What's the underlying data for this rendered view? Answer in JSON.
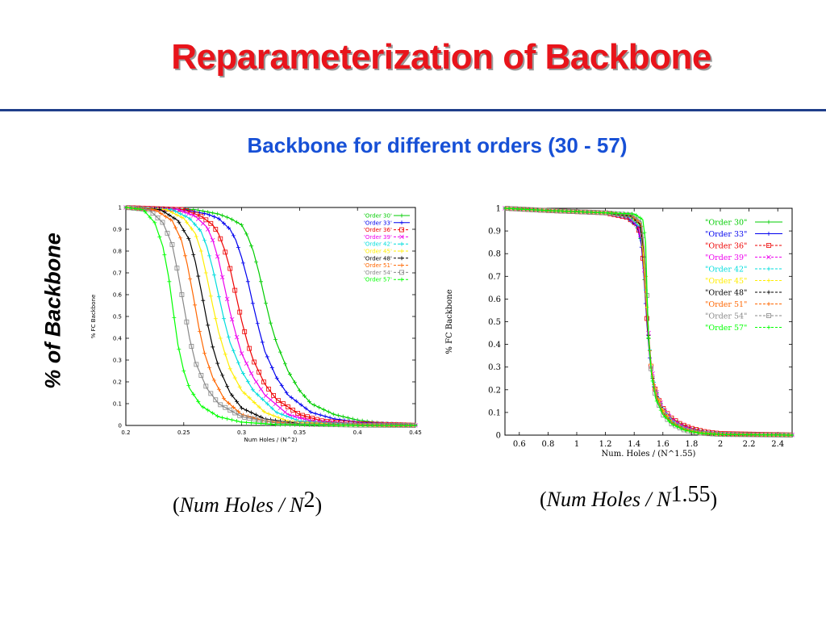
{
  "slide": {
    "title": "Reparameterization of Backbone",
    "subtitle": "Backbone for different orders (30 - 57)",
    "y_caption": "% of Backbone",
    "left_formula": {
      "open": "(",
      "text": "Num Holes / N",
      "exponent": "2",
      "close": ")"
    },
    "right_formula": {
      "open": "(",
      "text": "Num Holes / N",
      "exponent": "1.55",
      "close": ")"
    }
  },
  "colors": {
    "title": "#e8141b",
    "subtitle": "#1750d6",
    "rule": "#1f3e8a"
  },
  "chart_data": [
    {
      "type": "line",
      "xlabel": "Num Holes / (N^2)",
      "ylabel": "% FC Backbone",
      "xlim": [
        0.2,
        0.45
      ],
      "ylim": [
        0,
        1
      ],
      "xticks": [
        "0.2",
        "0.25",
        "0.3",
        "0.35",
        "0.4",
        "0.45"
      ],
      "xtick_values": [
        0.2,
        0.25,
        0.3,
        0.35,
        0.4,
        0.45
      ],
      "yticks": [
        "0",
        "0.1",
        "0.2",
        "0.3",
        "0.4",
        "0.5",
        "0.6",
        "0.7",
        "0.8",
        "0.9",
        "1"
      ],
      "ytick_values": [
        0,
        0.1,
        0.2,
        0.3,
        0.4,
        0.5,
        0.6,
        0.7,
        0.8,
        0.9,
        1
      ],
      "legend_position": "top-right",
      "grid": false,
      "series": [
        {
          "name": "Order 30",
          "legend": "'Order 30'",
          "color": "#00cc00",
          "x": [
            0.2,
            0.26,
            0.28,
            0.29,
            0.3,
            0.305,
            0.31,
            0.315,
            0.32,
            0.325,
            0.33,
            0.34,
            0.35,
            0.36,
            0.38,
            0.4,
            0.42,
            0.45
          ],
          "y": [
            1,
            0.99,
            0.97,
            0.95,
            0.92,
            0.87,
            0.8,
            0.7,
            0.58,
            0.47,
            0.38,
            0.25,
            0.16,
            0.1,
            0.05,
            0.025,
            0.01,
            0.003
          ]
        },
        {
          "name": "Order 33",
          "legend": "'Order 33'",
          "color": "#0000ee",
          "x": [
            0.2,
            0.25,
            0.27,
            0.28,
            0.29,
            0.295,
            0.3,
            0.305,
            0.31,
            0.315,
            0.32,
            0.33,
            0.34,
            0.36,
            0.38,
            0.4,
            0.45
          ],
          "y": [
            1,
            0.99,
            0.97,
            0.95,
            0.9,
            0.85,
            0.77,
            0.67,
            0.55,
            0.44,
            0.34,
            0.22,
            0.14,
            0.06,
            0.03,
            0.015,
            0.002
          ]
        },
        {
          "name": "Order 36",
          "legend": "'Order 36'",
          "color": "#ee0000",
          "x": [
            0.2,
            0.25,
            0.265,
            0.275,
            0.28,
            0.285,
            0.29,
            0.295,
            0.3,
            0.305,
            0.31,
            0.32,
            0.33,
            0.35,
            0.37,
            0.4,
            0.45
          ],
          "y": [
            1,
            0.99,
            0.96,
            0.92,
            0.88,
            0.81,
            0.72,
            0.6,
            0.48,
            0.38,
            0.3,
            0.19,
            0.12,
            0.05,
            0.02,
            0.008,
            0.001
          ]
        },
        {
          "name": "Order 39",
          "legend": "'Order 39'",
          "color": "#ee00ee",
          "x": [
            0.2,
            0.245,
            0.26,
            0.27,
            0.275,
            0.28,
            0.285,
            0.29,
            0.295,
            0.3,
            0.31,
            0.32,
            0.34,
            0.36,
            0.4,
            0.45
          ],
          "y": [
            1,
            0.99,
            0.96,
            0.91,
            0.85,
            0.76,
            0.64,
            0.52,
            0.42,
            0.33,
            0.22,
            0.14,
            0.05,
            0.02,
            0.005,
            0.001
          ]
        },
        {
          "name": "Order 42",
          "legend": "'Order 42'",
          "color": "#00dddd",
          "x": [
            0.2,
            0.24,
            0.255,
            0.265,
            0.27,
            0.275,
            0.28,
            0.285,
            0.29,
            0.3,
            0.31,
            0.33,
            0.35,
            0.4,
            0.45
          ],
          "y": [
            1,
            0.99,
            0.95,
            0.89,
            0.82,
            0.72,
            0.6,
            0.48,
            0.38,
            0.25,
            0.16,
            0.06,
            0.02,
            0.004,
            0
          ]
        },
        {
          "name": "Order 45",
          "legend": "'Order 45'",
          "color": "#ffee00",
          "x": [
            0.2,
            0.235,
            0.25,
            0.26,
            0.265,
            0.27,
            0.275,
            0.28,
            0.285,
            0.29,
            0.3,
            0.32,
            0.34,
            0.38,
            0.45
          ],
          "y": [
            1,
            0.99,
            0.95,
            0.88,
            0.8,
            0.68,
            0.55,
            0.43,
            0.34,
            0.26,
            0.16,
            0.06,
            0.02,
            0.004,
            0
          ]
        },
        {
          "name": "Order 48",
          "legend": "'Order 48'",
          "color": "#000000",
          "x": [
            0.2,
            0.23,
            0.245,
            0.255,
            0.26,
            0.265,
            0.27,
            0.275,
            0.28,
            0.29,
            0.3,
            0.32,
            0.35,
            0.4,
            0.45
          ],
          "y": [
            1,
            0.99,
            0.94,
            0.85,
            0.75,
            0.62,
            0.48,
            0.36,
            0.27,
            0.15,
            0.08,
            0.03,
            0.008,
            0.001,
            0
          ]
        },
        {
          "name": "Order 51",
          "legend": "'Order 51'",
          "color": "#ff6600",
          "x": [
            0.2,
            0.225,
            0.24,
            0.248,
            0.253,
            0.258,
            0.263,
            0.268,
            0.275,
            0.285,
            0.3,
            0.32,
            0.35,
            0.45
          ],
          "y": [
            1,
            0.99,
            0.94,
            0.85,
            0.74,
            0.6,
            0.45,
            0.33,
            0.22,
            0.12,
            0.05,
            0.02,
            0.005,
            0
          ]
        },
        {
          "name": "Order 54",
          "legend": "'Order 54'",
          "color": "#888888",
          "x": [
            0.2,
            0.22,
            0.232,
            0.24,
            0.245,
            0.25,
            0.255,
            0.26,
            0.27,
            0.28,
            0.3,
            0.33,
            0.4,
            0.45
          ],
          "y": [
            1,
            0.99,
            0.93,
            0.83,
            0.7,
            0.55,
            0.4,
            0.29,
            0.17,
            0.1,
            0.04,
            0.01,
            0.001,
            0
          ]
        },
        {
          "name": "Order 57",
          "legend": "'Order 57'",
          "color": "#00ff00",
          "x": [
            0.2,
            0.215,
            0.225,
            0.232,
            0.237,
            0.241,
            0.245,
            0.25,
            0.255,
            0.265,
            0.28,
            0.3,
            0.33,
            0.4,
            0.45
          ],
          "y": [
            1,
            0.99,
            0.93,
            0.82,
            0.68,
            0.52,
            0.37,
            0.25,
            0.17,
            0.09,
            0.04,
            0.015,
            0.004,
            0,
            0
          ]
        }
      ]
    },
    {
      "type": "line",
      "xlabel": "Num. Holes / (N^1.55)",
      "ylabel": "% FC Backbone",
      "xlim": [
        0.5,
        2.5
      ],
      "ylim": [
        0,
        1
      ],
      "xticks": [
        "0.6",
        "0.8",
        "1",
        "1.2",
        "1.4",
        "1.6",
        "1.8",
        "2",
        "2.2",
        "2.4"
      ],
      "xtick_values": [
        0.6,
        0.8,
        1,
        1.2,
        1.4,
        1.6,
        1.8,
        2,
        2.2,
        2.4
      ],
      "yticks": [
        "0",
        "0.1",
        "0.2",
        "0.3",
        "0.4",
        "0.5",
        "0.6",
        "0.7",
        "0.8",
        "0.9",
        "1"
      ],
      "ytick_values": [
        0,
        0.1,
        0.2,
        0.3,
        0.4,
        0.5,
        0.6,
        0.7,
        0.8,
        0.9,
        1
      ],
      "legend_position": "top-right",
      "grid": false,
      "series": [
        {
          "name": "Order 30",
          "legend": "\"Order 30\"",
          "color": "#00cc00",
          "x": [
            0.5,
            0.8,
            1.0,
            1.2,
            1.35,
            1.42,
            1.45,
            1.47,
            1.49,
            1.51,
            1.53,
            1.56,
            1.6,
            1.65,
            1.72,
            1.8,
            1.9,
            2.0,
            2.2,
            2.5
          ],
          "y": [
            1,
            0.99,
            0.985,
            0.98,
            0.96,
            0.92,
            0.85,
            0.7,
            0.5,
            0.35,
            0.25,
            0.18,
            0.12,
            0.08,
            0.05,
            0.03,
            0.015,
            0.008,
            0.004,
            0.001
          ]
        },
        {
          "name": "Order 33",
          "legend": "\"Order 33\"",
          "color": "#0000ee",
          "x": [
            0.5,
            0.8,
            1.0,
            1.2,
            1.35,
            1.42,
            1.45,
            1.47,
            1.49,
            1.51,
            1.53,
            1.56,
            1.6,
            1.65,
            1.72,
            1.8,
            1.9,
            2.0,
            2.5
          ],
          "y": [
            1,
            0.99,
            0.985,
            0.98,
            0.96,
            0.92,
            0.84,
            0.68,
            0.48,
            0.33,
            0.23,
            0.16,
            0.11,
            0.07,
            0.045,
            0.025,
            0.012,
            0.006,
            0.001
          ]
        },
        {
          "name": "Order 36",
          "legend": "\"Order 36\"",
          "color": "#ee0000",
          "x": [
            0.5,
            0.8,
            1.0,
            1.2,
            1.35,
            1.42,
            1.45,
            1.47,
            1.49,
            1.51,
            1.53,
            1.56,
            1.6,
            1.65,
            1.72,
            1.8,
            1.9,
            2.0,
            2.5
          ],
          "y": [
            1,
            0.99,
            0.985,
            0.98,
            0.96,
            0.93,
            0.86,
            0.7,
            0.5,
            0.34,
            0.24,
            0.17,
            0.12,
            0.08,
            0.05,
            0.03,
            0.014,
            0.007,
            0.001
          ]
        },
        {
          "name": "Order 39",
          "legend": "\"Order 39\"",
          "color": "#ee00ee",
          "x": [
            0.5,
            0.8,
            1.0,
            1.2,
            1.36,
            1.43,
            1.46,
            1.48,
            1.5,
            1.52,
            1.55,
            1.6,
            1.66,
            1.75,
            1.85,
            2.0,
            2.5
          ],
          "y": [
            1,
            0.99,
            0.985,
            0.98,
            0.96,
            0.92,
            0.83,
            0.65,
            0.45,
            0.3,
            0.2,
            0.12,
            0.07,
            0.035,
            0.015,
            0.005,
            0.001
          ]
        },
        {
          "name": "Order 42",
          "legend": "\"Order 42\"",
          "color": "#00dddd",
          "x": [
            0.5,
            0.8,
            1.0,
            1.2,
            1.37,
            1.44,
            1.46,
            1.48,
            1.5,
            1.52,
            1.55,
            1.6,
            1.66,
            1.75,
            1.85,
            2.0,
            2.5
          ],
          "y": [
            1,
            0.99,
            0.985,
            0.98,
            0.96,
            0.92,
            0.82,
            0.64,
            0.44,
            0.29,
            0.19,
            0.11,
            0.065,
            0.03,
            0.013,
            0.004,
            0
          ]
        },
        {
          "name": "Order 45",
          "legend": "\"Order 45\"",
          "color": "#ffee00",
          "x": [
            0.5,
            0.8,
            1.0,
            1.2,
            1.37,
            1.44,
            1.46,
            1.48,
            1.5,
            1.52,
            1.55,
            1.6,
            1.66,
            1.75,
            1.85,
            2.0,
            2.5
          ],
          "y": [
            1,
            0.99,
            0.985,
            0.98,
            0.965,
            0.93,
            0.83,
            0.65,
            0.45,
            0.29,
            0.19,
            0.11,
            0.06,
            0.028,
            0.012,
            0.004,
            0
          ]
        },
        {
          "name": "Order 48",
          "legend": "\"Order 48\"",
          "color": "#000000",
          "x": [
            0.5,
            0.8,
            1.0,
            1.2,
            1.38,
            1.44,
            1.47,
            1.49,
            1.5,
            1.52,
            1.55,
            1.6,
            1.66,
            1.75,
            1.85,
            2.0,
            2.5
          ],
          "y": [
            1,
            0.99,
            0.985,
            0.98,
            0.965,
            0.93,
            0.8,
            0.6,
            0.44,
            0.28,
            0.18,
            0.1,
            0.055,
            0.025,
            0.01,
            0.003,
            0
          ]
        },
        {
          "name": "Order 51",
          "legend": "\"Order 51\"",
          "color": "#ff6600",
          "x": [
            0.5,
            0.8,
            1.0,
            1.2,
            1.38,
            1.45,
            1.47,
            1.49,
            1.5,
            1.52,
            1.55,
            1.6,
            1.66,
            1.75,
            1.85,
            2.0,
            2.5
          ],
          "y": [
            1,
            0.99,
            0.985,
            0.98,
            0.97,
            0.93,
            0.8,
            0.6,
            0.44,
            0.28,
            0.18,
            0.1,
            0.055,
            0.025,
            0.01,
            0.003,
            0
          ]
        },
        {
          "name": "Order 54",
          "legend": "\"Order 54\"",
          "color": "#888888",
          "x": [
            0.5,
            0.8,
            1.0,
            1.2,
            1.39,
            1.45,
            1.47,
            1.49,
            1.5,
            1.52,
            1.55,
            1.6,
            1.66,
            1.75,
            1.85,
            2.0,
            2.5
          ],
          "y": [
            1,
            0.99,
            0.985,
            0.98,
            0.97,
            0.94,
            0.82,
            0.6,
            0.43,
            0.27,
            0.17,
            0.09,
            0.05,
            0.022,
            0.009,
            0.003,
            0
          ]
        },
        {
          "name": "Order 57",
          "legend": "\"Order 57\"",
          "color": "#00ff00",
          "x": [
            0.5,
            0.8,
            1.0,
            1.2,
            1.4,
            1.46,
            1.48,
            1.49,
            1.5,
            1.52,
            1.55,
            1.6,
            1.66,
            1.75,
            1.85,
            2.0,
            2.5
          ],
          "y": [
            1,
            0.99,
            0.985,
            0.98,
            0.975,
            0.95,
            0.85,
            0.62,
            0.43,
            0.27,
            0.16,
            0.09,
            0.05,
            0.022,
            0.009,
            0.003,
            0
          ]
        }
      ]
    }
  ]
}
